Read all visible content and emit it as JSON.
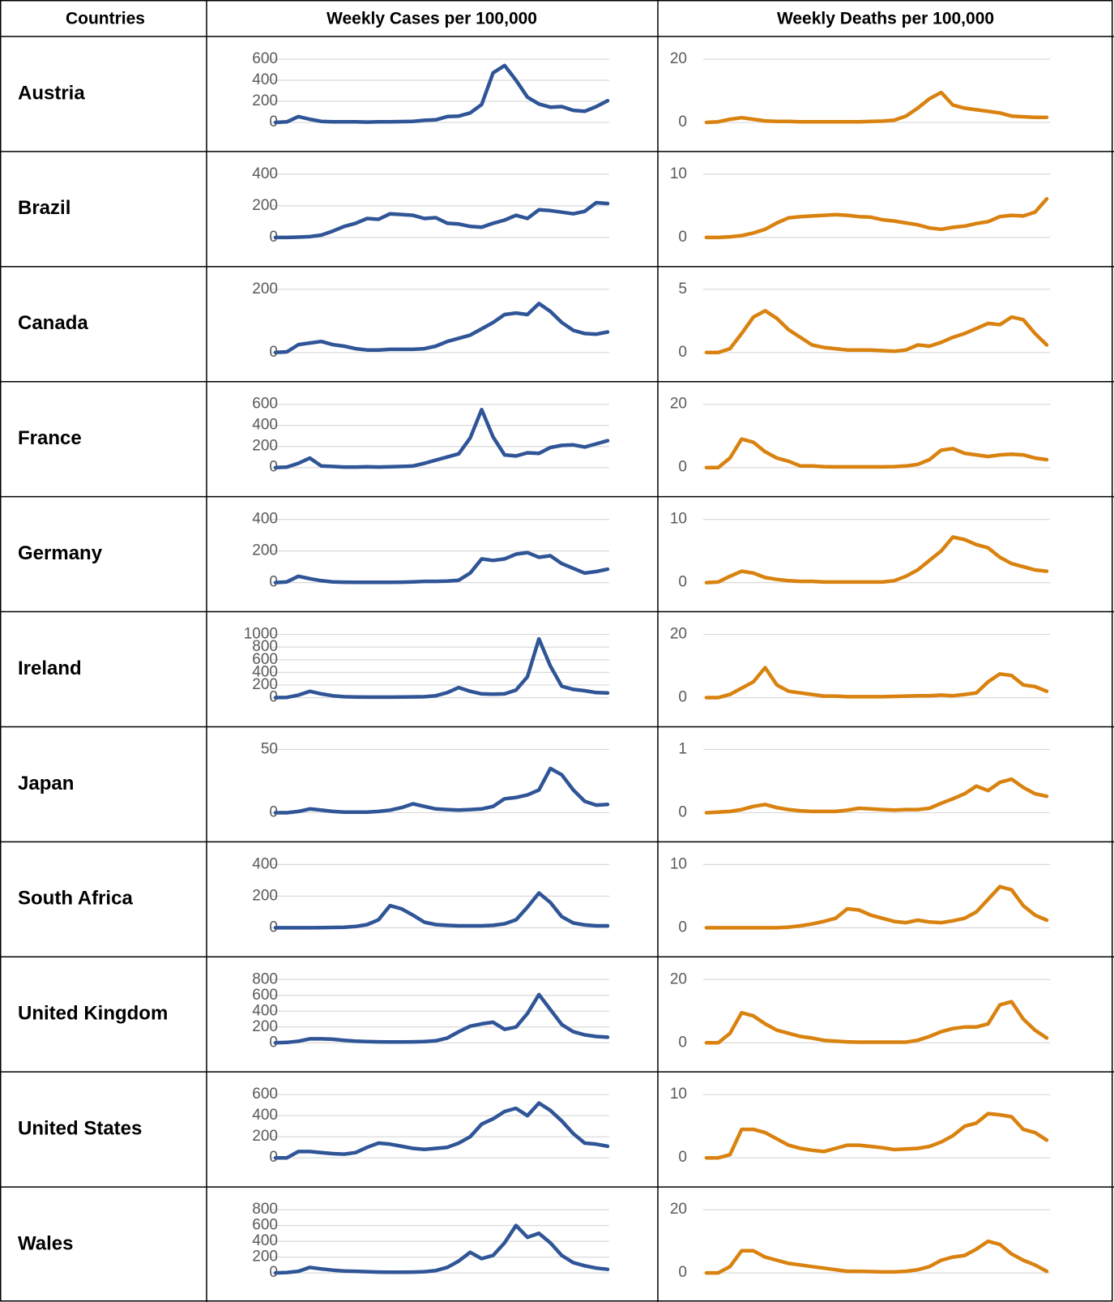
{
  "table": {
    "header": [
      "Countries",
      "Weekly Cases per 100,000",
      "Weekly Deaths per 100,000"
    ],
    "rows": [
      {
        "country": "Austria",
        "cases": {
          "type": "line",
          "color": "#2f5597",
          "ylim": [
            0,
            600
          ],
          "yticks": [
            0,
            200,
            400,
            600
          ],
          "values": [
            0,
            5,
            55,
            30,
            10,
            5,
            5,
            5,
            3,
            5,
            5,
            8,
            10,
            20,
            25,
            55,
            60,
            90,
            170,
            470,
            540,
            400,
            240,
            175,
            145,
            150,
            115,
            105,
            150,
            205
          ]
        },
        "deaths": {
          "type": "line",
          "color": "#d9820f",
          "ylim": [
            0,
            20
          ],
          "yticks": [
            0,
            20
          ],
          "values": [
            0,
            0.2,
            1,
            1.5,
            1,
            0.5,
            0.3,
            0.3,
            0.2,
            0.2,
            0.2,
            0.2,
            0.2,
            0.2,
            0.3,
            0.4,
            0.7,
            2,
            4.5,
            7.5,
            9.5,
            5.5,
            4.5,
            4,
            3.5,
            3,
            2,
            1.8,
            1.6,
            1.6
          ]
        }
      },
      {
        "country": "Brazil",
        "cases": {
          "type": "line",
          "color": "#2f5597",
          "ylim": [
            0,
            400
          ],
          "yticks": [
            0,
            200,
            400
          ],
          "values": [
            0,
            0,
            2,
            5,
            15,
            40,
            70,
            90,
            120,
            115,
            150,
            145,
            140,
            120,
            125,
            90,
            85,
            70,
            65,
            90,
            110,
            140,
            120,
            175,
            170,
            160,
            150,
            165,
            220,
            215
          ]
        },
        "deaths": {
          "type": "line",
          "color": "#d9820f",
          "ylim": [
            0,
            10
          ],
          "yticks": [
            0,
            10
          ],
          "values": [
            0,
            0,
            0.1,
            0.3,
            0.7,
            1.3,
            2.3,
            3.1,
            3.3,
            3.4,
            3.5,
            3.6,
            3.5,
            3.3,
            3.2,
            2.8,
            2.6,
            2.3,
            2.0,
            1.5,
            1.3,
            1.6,
            1.8,
            2.2,
            2.5,
            3.3,
            3.5,
            3.4,
            4.0,
            6.1
          ]
        }
      },
      {
        "country": "Canada",
        "cases": {
          "type": "line",
          "color": "#2f5597",
          "ylim": [
            0,
            200
          ],
          "yticks": [
            0,
            200
          ],
          "values": [
            0,
            2,
            25,
            30,
            35,
            25,
            20,
            12,
            8,
            8,
            10,
            10,
            10,
            12,
            20,
            35,
            45,
            55,
            75,
            95,
            120,
            125,
            120,
            155,
            130,
            95,
            70,
            60,
            58,
            65
          ]
        },
        "deaths": {
          "type": "line",
          "color": "#d9820f",
          "ylim": [
            0,
            5
          ],
          "yticks": [
            0,
            5
          ],
          "values": [
            0,
            0,
            0.3,
            1.5,
            2.8,
            3.3,
            2.7,
            1.8,
            1.2,
            0.6,
            0.4,
            0.3,
            0.2,
            0.2,
            0.2,
            0.15,
            0.1,
            0.2,
            0.6,
            0.5,
            0.8,
            1.2,
            1.5,
            1.9,
            2.3,
            2.2,
            2.8,
            2.6,
            1.5,
            0.6
          ]
        }
      },
      {
        "country": "France",
        "cases": {
          "type": "line",
          "color": "#2f5597",
          "ylim": [
            0,
            600
          ],
          "yticks": [
            0,
            200,
            400,
            600
          ],
          "values": [
            0,
            5,
            40,
            90,
            15,
            10,
            5,
            5,
            8,
            5,
            8,
            10,
            15,
            40,
            70,
            100,
            130,
            280,
            550,
            290,
            120,
            110,
            140,
            135,
            190,
            210,
            215,
            195,
            225,
            255
          ]
        },
        "deaths": {
          "type": "line",
          "color": "#d9820f",
          "ylim": [
            0,
            20
          ],
          "yticks": [
            0,
            20
          ],
          "values": [
            0,
            0,
            3,
            9,
            8,
            5,
            3,
            2,
            0.5,
            0.5,
            0.3,
            0.2,
            0.2,
            0.2,
            0.2,
            0.2,
            0.3,
            0.5,
            1,
            2.5,
            5.5,
            6,
            4.5,
            4,
            3.5,
            4,
            4.2,
            4,
            3,
            2.5
          ]
        }
      },
      {
        "country": "Germany",
        "cases": {
          "type": "line",
          "color": "#2f5597",
          "ylim": [
            0,
            400
          ],
          "yticks": [
            0,
            200,
            400
          ],
          "values": [
            0,
            5,
            40,
            25,
            12,
            5,
            3,
            2,
            2,
            2,
            2,
            3,
            5,
            8,
            8,
            10,
            15,
            60,
            150,
            140,
            150,
            180,
            190,
            160,
            170,
            120,
            90,
            60,
            70,
            85
          ]
        },
        "deaths": {
          "type": "line",
          "color": "#d9820f",
          "ylim": [
            0,
            10
          ],
          "yticks": [
            0,
            10
          ],
          "values": [
            0,
            0.1,
            1,
            1.8,
            1.5,
            0.8,
            0.5,
            0.3,
            0.2,
            0.2,
            0.1,
            0.1,
            0.1,
            0.1,
            0.1,
            0.1,
            0.3,
            1.0,
            2.0,
            3.5,
            5.0,
            7.2,
            6.8,
            6.0,
            5.5,
            4.0,
            3.0,
            2.5,
            2.0,
            1.8
          ]
        }
      },
      {
        "country": "Ireland",
        "cases": {
          "type": "line",
          "color": "#2f5597",
          "ylim": [
            0,
            1000
          ],
          "yticks": [
            0,
            200,
            400,
            600,
            800,
            1000
          ],
          "values": [
            0,
            5,
            40,
            100,
            60,
            30,
            15,
            10,
            8,
            8,
            8,
            10,
            12,
            15,
            30,
            80,
            160,
            100,
            60,
            55,
            60,
            120,
            330,
            930,
            500,
            180,
            130,
            110,
            80,
            75
          ]
        },
        "deaths": {
          "type": "line",
          "color": "#d9820f",
          "ylim": [
            0,
            20
          ],
          "yticks": [
            0,
            20
          ],
          "values": [
            0,
            0,
            1,
            3,
            5,
            9.5,
            4,
            2,
            1.5,
            1,
            0.5,
            0.5,
            0.3,
            0.3,
            0.3,
            0.3,
            0.4,
            0.5,
            0.6,
            0.6,
            0.8,
            0.6,
            1,
            1.5,
            5,
            7.5,
            7,
            4,
            3.5,
            2
          ]
        }
      },
      {
        "country": "Japan",
        "cases": {
          "type": "line",
          "color": "#2f5597",
          "ylim": [
            0,
            50
          ],
          "yticks": [
            0,
            50
          ],
          "values": [
            0,
            0,
            1,
            3,
            2,
            1,
            0.5,
            0.5,
            0.5,
            1,
            2,
            4,
            7,
            5,
            3,
            2.5,
            2,
            2.5,
            3,
            5,
            11,
            12,
            14,
            18,
            35,
            30,
            18,
            9,
            6,
            6.5
          ]
        },
        "deaths": {
          "type": "line",
          "color": "#d9820f",
          "ylim": [
            0,
            1
          ],
          "yticks": [
            0,
            1
          ],
          "values": [
            0,
            0.01,
            0.02,
            0.05,
            0.1,
            0.13,
            0.08,
            0.05,
            0.03,
            0.02,
            0.02,
            0.02,
            0.04,
            0.07,
            0.06,
            0.05,
            0.04,
            0.05,
            0.05,
            0.07,
            0.15,
            0.22,
            0.3,
            0.42,
            0.35,
            0.48,
            0.53,
            0.4,
            0.3,
            0.26
          ]
        }
      },
      {
        "country": "South Africa",
        "cases": {
          "type": "line",
          "color": "#2f5597",
          "ylim": [
            0,
            400
          ],
          "yticks": [
            0,
            200,
            400
          ],
          "values": [
            0,
            0,
            0,
            0,
            1,
            2,
            3,
            8,
            20,
            50,
            140,
            120,
            80,
            35,
            20,
            15,
            12,
            12,
            12,
            15,
            25,
            50,
            130,
            220,
            160,
            70,
            30,
            18,
            12,
            12
          ]
        },
        "deaths": {
          "type": "line",
          "color": "#d9820f",
          "ylim": [
            0,
            10
          ],
          "yticks": [
            0,
            10
          ],
          "values": [
            0,
            0,
            0,
            0,
            0,
            0,
            0,
            0.1,
            0.3,
            0.6,
            1,
            1.5,
            3,
            2.8,
            2,
            1.5,
            1,
            0.8,
            1.2,
            0.9,
            0.8,
            1.1,
            1.5,
            2.5,
            4.5,
            6.5,
            6,
            3.5,
            2,
            1.2
          ]
        }
      },
      {
        "country": "United Kingdom",
        "cases": {
          "type": "line",
          "color": "#2f5597",
          "ylim": [
            0,
            800
          ],
          "yticks": [
            0,
            200,
            400,
            600,
            800
          ],
          "values": [
            0,
            5,
            20,
            50,
            50,
            45,
            30,
            20,
            15,
            12,
            10,
            10,
            12,
            15,
            25,
            60,
            140,
            210,
            240,
            260,
            170,
            200,
            370,
            610,
            420,
            230,
            140,
            100,
            80,
            70
          ]
        },
        "deaths": {
          "type": "line",
          "color": "#d9820f",
          "ylim": [
            0,
            20
          ],
          "yticks": [
            0,
            20
          ],
          "values": [
            0,
            0,
            3,
            9.5,
            8.5,
            6,
            4,
            3,
            2,
            1.5,
            0.8,
            0.5,
            0.3,
            0.2,
            0.2,
            0.2,
            0.2,
            0.2,
            0.8,
            2,
            3.5,
            4.5,
            5,
            5,
            6,
            12,
            13,
            7.5,
            4,
            1.5
          ]
        }
      },
      {
        "country": "United States",
        "cases": {
          "type": "line",
          "color": "#2f5597",
          "ylim": [
            0,
            600
          ],
          "yticks": [
            0,
            200,
            400,
            600
          ],
          "values": [
            0,
            0,
            60,
            60,
            50,
            40,
            35,
            50,
            100,
            140,
            130,
            110,
            90,
            80,
            90,
            100,
            140,
            200,
            320,
            370,
            440,
            470,
            400,
            520,
            450,
            350,
            230,
            140,
            130,
            110
          ]
        },
        "deaths": {
          "type": "line",
          "color": "#d9820f",
          "ylim": [
            0,
            10
          ],
          "yticks": [
            0,
            10
          ],
          "values": [
            0,
            0,
            0.5,
            4.5,
            4.5,
            4,
            3,
            2,
            1.5,
            1.2,
            1,
            1.5,
            2,
            2,
            1.8,
            1.6,
            1.3,
            1.4,
            1.5,
            1.8,
            2.5,
            3.5,
            5,
            5.5,
            7,
            6.8,
            6.5,
            4.5,
            4,
            2.8
          ]
        }
      },
      {
        "country": "Wales",
        "cases": {
          "type": "line",
          "color": "#2f5597",
          "ylim": [
            0,
            800
          ],
          "yticks": [
            0,
            200,
            400,
            600,
            800
          ],
          "values": [
            0,
            5,
            20,
            70,
            50,
            35,
            25,
            20,
            15,
            10,
            8,
            8,
            10,
            15,
            30,
            70,
            150,
            260,
            180,
            220,
            380,
            600,
            450,
            500,
            380,
            220,
            130,
            90,
            60,
            45
          ]
        },
        "deaths": {
          "type": "line",
          "color": "#d9820f",
          "ylim": [
            0,
            20
          ],
          "yticks": [
            0,
            20
          ],
          "values": [
            0,
            0,
            2,
            7,
            7,
            5,
            4,
            3,
            2.5,
            2,
            1.5,
            1,
            0.5,
            0.5,
            0.4,
            0.3,
            0.3,
            0.5,
            1,
            2,
            4,
            5,
            5.5,
            7.5,
            10,
            9,
            6,
            4,
            2.5,
            0.5
          ]
        }
      }
    ]
  }
}
